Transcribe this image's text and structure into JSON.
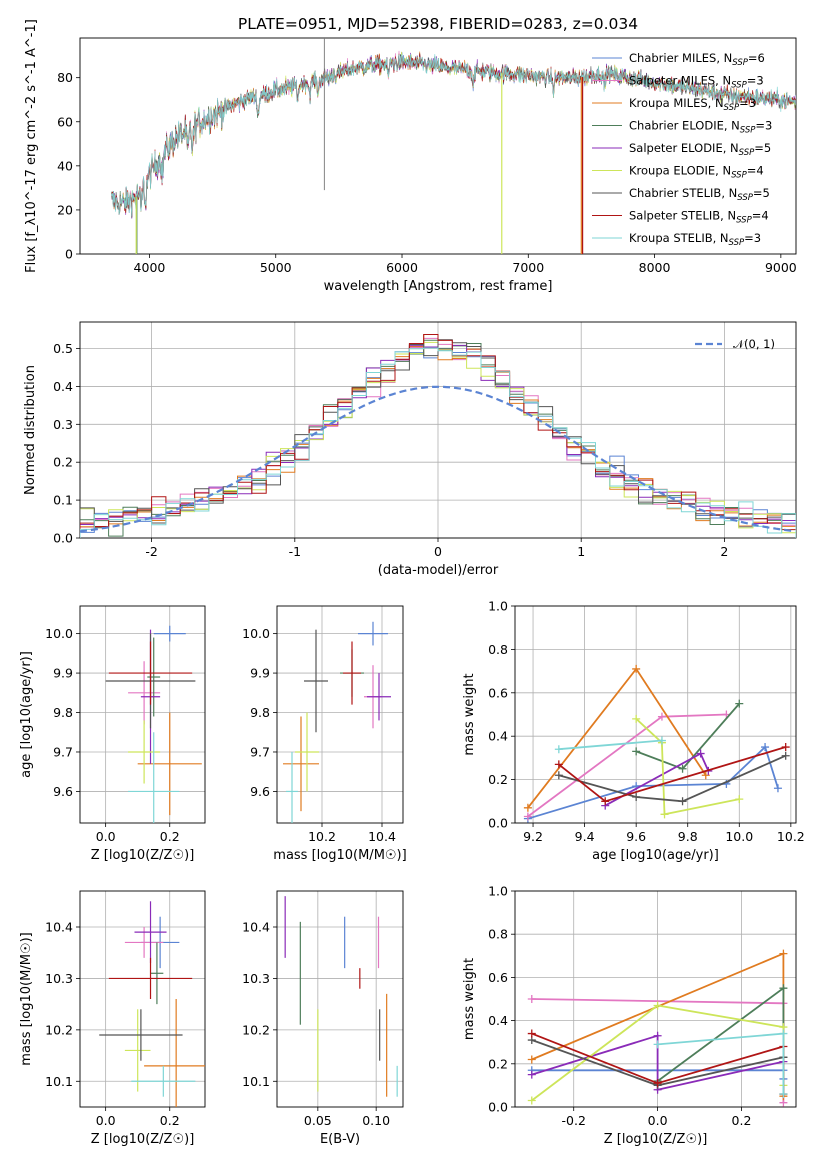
{
  "figure": {
    "title": "PLATE=0951, MJD=52398, FIBERID=0283, z=0.034"
  },
  "models": [
    {
      "label": "Chabrier MILES, N$_{SSP}$=6",
      "imf": "Chabrier",
      "lib": "MILES",
      "n": "6",
      "color": "#5b84d3"
    },
    {
      "label": "Salpeter MILES, N$_{SSP}$=3",
      "imf": "Salpeter",
      "lib": "MILES",
      "n": "3",
      "color": "#e377c2"
    },
    {
      "label": "Kroupa MILES, N$_{SSP}$=3",
      "imf": "Kroupa",
      "lib": "MILES",
      "n": "3",
      "color": "#e07b20"
    },
    {
      "label": "Chabrier ELODIE, N$_{SSP}$=3",
      "imf": "Chabrier",
      "lib": "ELODIE",
      "n": "3",
      "color": "#4e7e5a"
    },
    {
      "label": "Salpeter ELODIE, N$_{SSP}$=5",
      "imf": "Salpeter",
      "lib": "ELODIE",
      "n": "5",
      "color": "#8a2bb8"
    },
    {
      "label": "Kroupa ELODIE, N$_{SSP}$=4",
      "imf": "Kroupa",
      "lib": "ELODIE",
      "n": "4",
      "color": "#cde55a"
    },
    {
      "label": "Chabrier STELIB, N$_{SSP}$=5",
      "imf": "Chabrier",
      "lib": "STELIB",
      "n": "5",
      "color": "#555555"
    },
    {
      "label": "Salpeter STELIB, N$_{SSP}$=4",
      "imf": "Salpeter",
      "lib": "STELIB",
      "n": "4",
      "color": "#b01515"
    },
    {
      "label": "Kroupa STELIB, N$_{SSP}$=3",
      "imf": "Kroupa",
      "lib": "STELIB",
      "n": "3",
      "color": "#7fd6d6"
    }
  ],
  "chart_data": [
    {
      "id": "spectrum",
      "type": "line",
      "title": "PLATE=0951, MJD=52398, FIBERID=0283, z=0.034",
      "xlabel": "wavelength [Angstrom, rest frame]",
      "ylabel": "Flux [f_λ10^-17 erg cm^-2 s^-1 A^-1]",
      "xlim": [
        3450,
        9120
      ],
      "ylim": [
        0,
        98
      ],
      "xticks": [
        4000,
        5000,
        6000,
        7000,
        8000,
        9000
      ],
      "yticks": [
        0,
        20,
        40,
        60,
        80
      ],
      "grid": false,
      "legend": "top-right",
      "continuum_x": [
        3700,
        3800,
        3900,
        4000,
        4100,
        4200,
        4400,
        4600,
        4800,
        5000,
        5200,
        5400,
        5600,
        5800,
        6000,
        6200,
        6400,
        6600,
        6800,
        7000,
        7200,
        7400,
        7600,
        7800,
        8000,
        8200,
        8400,
        8600,
        8800,
        9000,
        9120
      ],
      "continuum_y": [
        24,
        23,
        26,
        36,
        45,
        52,
        60,
        66,
        71,
        74,
        77,
        80,
        84,
        86,
        87,
        86,
        84,
        83,
        82,
        81,
        80,
        80,
        82,
        80,
        78,
        76,
        74,
        72,
        71,
        70,
        69
      ],
      "absorption_lines": [
        3934,
        3969,
        4102,
        4304,
        4340,
        4861,
        5175,
        5270,
        5335,
        5890,
        6563,
        7200,
        7600
      ],
      "dropouts": [
        {
          "model": "Chabrier ELODIE",
          "x": 3900
        },
        {
          "model": "Kroupa ELODIE",
          "x": 3895
        },
        {
          "model": "Kroupa ELODIE",
          "x": 6790
        },
        {
          "model": "Kroupa MILES",
          "x": 7420
        },
        {
          "model": "Salpeter STELIB",
          "x": 7430
        }
      ]
    },
    {
      "id": "residuals",
      "type": "area",
      "xlabel": "(data-model)/error",
      "ylabel": "Normed distribution",
      "xlim": [
        -2.5,
        2.5
      ],
      "ylim": [
        0,
        0.57
      ],
      "xticks": [
        -2,
        -1,
        0,
        1,
        2
      ],
      "yticks": [
        0.0,
        0.1,
        0.2,
        0.3,
        0.4,
        0.5
      ],
      "grid": true,
      "legend": "top-right",
      "reference": {
        "name": "$\\mathcal{N}(0,1)$",
        "mean": 0,
        "sigma": 1,
        "color": "#5b84d3"
      },
      "bin_width": 0.1
    },
    {
      "id": "age_vs_Z",
      "type": "scatter",
      "xlabel": "Z [log10(Z/Z☉)]",
      "ylabel": "age  [log10(age/yr)]",
      "xlim": [
        -0.08,
        0.31
      ],
      "ylim": [
        9.52,
        10.07
      ],
      "xticks": [
        0.0,
        0.2
      ],
      "yticks": [
        9.6,
        9.7,
        9.8,
        9.9,
        10.0
      ],
      "grid": true,
      "points": [
        {
          "model": 0,
          "x": 0.2,
          "y": 10.0,
          "xerr": 0.05,
          "yerr": 0.02
        },
        {
          "model": 1,
          "x": 0.12,
          "y": 9.85,
          "xerr": 0.05,
          "yerr": 0.08
        },
        {
          "model": 2,
          "x": 0.2,
          "y": 9.67,
          "xerr": 0.1,
          "yerr": 0.13
        },
        {
          "model": 3,
          "x": 0.15,
          "y": 9.89,
          "xerr": 0.02,
          "yerr": 0.1
        },
        {
          "model": 4,
          "x": 0.14,
          "y": 9.84,
          "xerr": 0.03,
          "yerr": 0.17
        },
        {
          "model": 5,
          "x": 0.12,
          "y": 9.7,
          "xerr": 0.05,
          "yerr": 0.08
        },
        {
          "model": 6,
          "x": 0.14,
          "y": 9.88,
          "xerr": 0.14,
          "yerr": 0.12
        },
        {
          "model": 7,
          "x": 0.14,
          "y": 9.9,
          "xerr": 0.13,
          "yerr": 0.08
        },
        {
          "model": 8,
          "x": 0.15,
          "y": 9.6,
          "xerr": 0.08,
          "yerr": 0.15
        }
      ]
    },
    {
      "id": "age_vs_mass",
      "type": "scatter",
      "xlabel": "mass [log10(M/M☉)]",
      "ylabel": "",
      "xlim": [
        10.05,
        10.47
      ],
      "ylim": [
        9.52,
        10.07
      ],
      "xticks": [
        10.2,
        10.4
      ],
      "yticks": [
        9.6,
        9.7,
        9.8,
        9.9,
        10.0
      ],
      "grid": true,
      "points": [
        {
          "model": 0,
          "x": 10.37,
          "y": 10.0,
          "xerr": 0.05,
          "yerr": 0.03
        },
        {
          "model": 1,
          "x": 10.37,
          "y": 9.84,
          "xerr": 0.03,
          "yerr": 0.08
        },
        {
          "model": 2,
          "x": 10.13,
          "y": 9.67,
          "xerr": 0.06,
          "yerr": 0.12
        },
        {
          "model": 3,
          "x": 10.3,
          "y": 9.9,
          "xerr": 0.04,
          "yerr": 0.06
        },
        {
          "model": 4,
          "x": 10.39,
          "y": 9.84,
          "xerr": 0.04,
          "yerr": 0.06
        },
        {
          "model": 5,
          "x": 10.15,
          "y": 9.7,
          "xerr": 0.04,
          "yerr": 0.1
        },
        {
          "model": 6,
          "x": 10.18,
          "y": 9.88,
          "xerr": 0.04,
          "yerr": 0.13
        },
        {
          "model": 7,
          "x": 10.3,
          "y": 9.9,
          "xerr": 0.03,
          "yerr": 0.08
        },
        {
          "model": 8,
          "x": 10.1,
          "y": 9.6,
          "xerr": 0.02,
          "yerr": 0.1
        }
      ]
    },
    {
      "id": "weight_vs_age",
      "type": "line",
      "xlabel": "age  [log10(age/yr)]",
      "ylabel": "mass weight",
      "xlim": [
        9.13,
        10.22
      ],
      "ylim": [
        0,
        1
      ],
      "xticks": [
        9.2,
        9.4,
        9.6,
        9.8,
        10.0,
        10.2
      ],
      "yticks": [
        0.0,
        0.2,
        0.4,
        0.6,
        0.8,
        1.0
      ],
      "grid": true,
      "series": [
        {
          "model": 0,
          "x": [
            9.18,
            9.6,
            9.95,
            10.1,
            10.15
          ],
          "y": [
            0.02,
            0.17,
            0.18,
            0.35,
            0.16
          ]
        },
        {
          "model": 1,
          "x": [
            9.18,
            9.7,
            9.95
          ],
          "y": [
            0.03,
            0.49,
            0.5
          ]
        },
        {
          "model": 2,
          "x": [
            9.18,
            9.6,
            9.87
          ],
          "y": [
            0.07,
            0.71,
            0.22
          ]
        },
        {
          "model": 3,
          "x": [
            9.6,
            9.78,
            10.0
          ],
          "y": [
            0.33,
            0.25,
            0.55
          ]
        },
        {
          "model": 4,
          "x": [
            9.48,
            9.85,
            9.88
          ],
          "y": [
            0.08,
            0.32,
            0.24
          ]
        },
        {
          "model": 5,
          "x": [
            9.6,
            9.7,
            9.71,
            10.0
          ],
          "y": [
            0.48,
            0.37,
            0.04,
            0.11
          ]
        },
        {
          "model": 6,
          "x": [
            9.3,
            9.6,
            9.78,
            10.18
          ],
          "y": [
            0.22,
            0.12,
            0.1,
            0.31
          ]
        },
        {
          "model": 7,
          "x": [
            9.3,
            9.48,
            10.18
          ],
          "y": [
            0.27,
            0.1,
            0.35
          ]
        },
        {
          "model": 8,
          "x": [
            9.3,
            9.7
          ],
          "y": [
            0.34,
            0.38
          ]
        }
      ]
    },
    {
      "id": "mass_vs_Z",
      "type": "scatter",
      "xlabel": "Z [log10(Z/Z☉)]",
      "ylabel": "mass [log10(M/M☉)]",
      "xlim": [
        -0.08,
        0.31
      ],
      "ylim": [
        10.05,
        10.47
      ],
      "xticks": [
        0.0,
        0.2
      ],
      "yticks": [
        10.1,
        10.2,
        10.3,
        10.4
      ],
      "grid": true,
      "points": [
        {
          "model": 0,
          "x": 0.17,
          "y": 10.37,
          "xerr": 0.06,
          "yerr": 0.05
        },
        {
          "model": 1,
          "x": 0.12,
          "y": 10.37,
          "xerr": 0.06,
          "yerr": 0.03
        },
        {
          "model": 2,
          "x": 0.22,
          "y": 10.13,
          "xerr": 0.1,
          "yerr": 0.13
        },
        {
          "model": 3,
          "x": 0.16,
          "y": 10.31,
          "xerr": 0.02,
          "yerr": 0.06
        },
        {
          "model": 4,
          "x": 0.14,
          "y": 10.39,
          "xerr": 0.05,
          "yerr": 0.06
        },
        {
          "model": 5,
          "x": 0.1,
          "y": 10.16,
          "xerr": 0.04,
          "yerr": 0.08
        },
        {
          "model": 6,
          "x": 0.11,
          "y": 10.19,
          "xerr": 0.13,
          "yerr": 0.05
        },
        {
          "model": 7,
          "x": 0.14,
          "y": 10.3,
          "xerr": 0.13,
          "yerr": 0.04
        },
        {
          "model": 8,
          "x": 0.18,
          "y": 10.1,
          "xerr": 0.1,
          "yerr": 0.03
        }
      ]
    },
    {
      "id": "mass_vs_EBV",
      "type": "scatter",
      "xlabel": "E(B-V)",
      "ylabel": "",
      "xlim": [
        0.015,
        0.123
      ],
      "ylim": [
        10.05,
        10.47
      ],
      "xticks": [
        0.05,
        0.1
      ],
      "yticks": [
        10.1,
        10.2,
        10.3,
        10.4
      ],
      "grid": true,
      "points": [
        {
          "model": 0,
          "x": 0.073,
          "y": 10.37,
          "yerr": 0.05
        },
        {
          "model": 1,
          "x": 0.102,
          "y": 10.37,
          "yerr": 0.05
        },
        {
          "model": 2,
          "x": 0.109,
          "y": 10.17,
          "yerr": 0.1
        },
        {
          "model": 3,
          "x": 0.035,
          "y": 10.31,
          "yerr": 0.1
        },
        {
          "model": 4,
          "x": 0.022,
          "y": 10.4,
          "yerr": 0.06
        },
        {
          "model": 5,
          "x": 0.05,
          "y": 10.16,
          "yerr": 0.08
        },
        {
          "model": 6,
          "x": 0.103,
          "y": 10.19,
          "yerr": 0.05
        },
        {
          "model": 7,
          "x": 0.086,
          "y": 10.3,
          "yerr": 0.02
        },
        {
          "model": 8,
          "x": 0.118,
          "y": 10.1,
          "yerr": 0.03
        }
      ]
    },
    {
      "id": "weight_vs_Z",
      "type": "line",
      "xlabel": "Z [log10(Z/Z☉)]",
      "ylabel": "mass weight",
      "xlim": [
        -0.34,
        0.33
      ],
      "ylim": [
        0,
        1
      ],
      "xticks": [
        -0.2,
        0.0,
        0.2
      ],
      "yticks": [
        0.0,
        0.2,
        0.4,
        0.6,
        0.8,
        1.0
      ],
      "grid": true,
      "series": [
        {
          "model": 0,
          "x": [
            -0.3,
            0.0,
            0.3,
            0.3
          ],
          "y": [
            0.17,
            0.17,
            0.17,
            0.13
          ]
        },
        {
          "model": 1,
          "x": [
            -0.3,
            0.3,
            0.3
          ],
          "y": [
            0.5,
            0.48,
            0.02
          ]
        },
        {
          "model": 2,
          "x": [
            -0.3,
            0.3,
            0.3
          ],
          "y": [
            0.22,
            0.71,
            0.05
          ]
        },
        {
          "model": 3,
          "x": [
            0.0,
            0.3,
            0.3
          ],
          "y": [
            0.12,
            0.55,
            0.23
          ]
        },
        {
          "model": 4,
          "x": [
            -0.3,
            0.0,
            0.0,
            0.3
          ],
          "y": [
            0.15,
            0.33,
            0.08,
            0.21
          ]
        },
        {
          "model": 5,
          "x": [
            -0.3,
            0.0,
            0.3,
            0.3
          ],
          "y": [
            0.03,
            0.47,
            0.37,
            0.1
          ]
        },
        {
          "model": 6,
          "x": [
            -0.3,
            0.0,
            0.3
          ],
          "y": [
            0.31,
            0.1,
            0.23
          ]
        },
        {
          "model": 7,
          "x": [
            -0.3,
            0.0,
            0.3,
            0.3
          ],
          "y": [
            0.34,
            0.11,
            0.28,
            0.06
          ]
        },
        {
          "model": 8,
          "x": [
            0.0,
            0.3,
            0.3
          ],
          "y": [
            0.29,
            0.34,
            0.06
          ]
        }
      ]
    }
  ]
}
